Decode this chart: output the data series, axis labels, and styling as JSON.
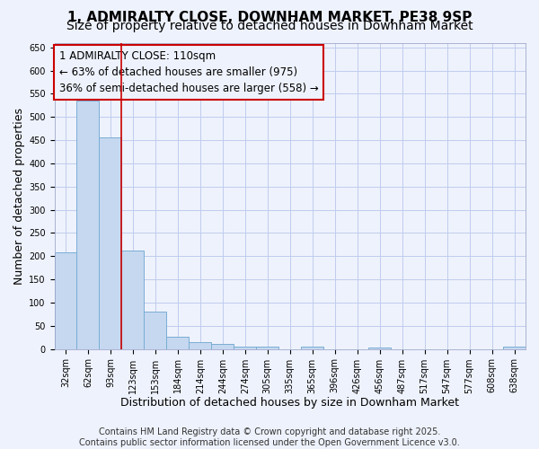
{
  "title": "1, ADMIRALTY CLOSE, DOWNHAM MARKET, PE38 9SP",
  "subtitle": "Size of property relative to detached houses in Downham Market",
  "xlabel": "Distribution of detached houses by size in Downham Market",
  "ylabel": "Number of detached properties",
  "footer_line1": "Contains HM Land Registry data © Crown copyright and database right 2025.",
  "footer_line2": "Contains public sector information licensed under the Open Government Licence v3.0.",
  "categories": [
    "32sqm",
    "62sqm",
    "93sqm",
    "123sqm",
    "153sqm",
    "184sqm",
    "214sqm",
    "244sqm",
    "274sqm",
    "305sqm",
    "335sqm",
    "365sqm",
    "396sqm",
    "426sqm",
    "456sqm",
    "487sqm",
    "517sqm",
    "547sqm",
    "577sqm",
    "608sqm",
    "638sqm"
  ],
  "values": [
    208,
    535,
    455,
    212,
    81,
    26,
    14,
    11,
    6,
    5,
    0,
    5,
    0,
    0,
    4,
    0,
    0,
    0,
    0,
    0,
    5
  ],
  "bar_color": "#c5d8f0",
  "bar_edge_color": "#7aadd4",
  "annotation_line1": "1 ADMIRALTY CLOSE: 110sqm",
  "annotation_line2": "← 63% of detached houses are smaller (975)",
  "annotation_line3": "36% of semi-detached houses are larger (558) →",
  "vline_x_idx": 2.5,
  "vline_color": "#cc0000",
  "ylim": [
    0,
    660
  ],
  "yticks": [
    0,
    50,
    100,
    150,
    200,
    250,
    300,
    350,
    400,
    450,
    500,
    550,
    600,
    650
  ],
  "background_color": "#eef2fc",
  "grid_color": "#c0ccee",
  "title_fontsize": 11,
  "subtitle_fontsize": 10,
  "axis_label_fontsize": 9,
  "tick_fontsize": 7,
  "annotation_fontsize": 8.5,
  "footer_fontsize": 7
}
